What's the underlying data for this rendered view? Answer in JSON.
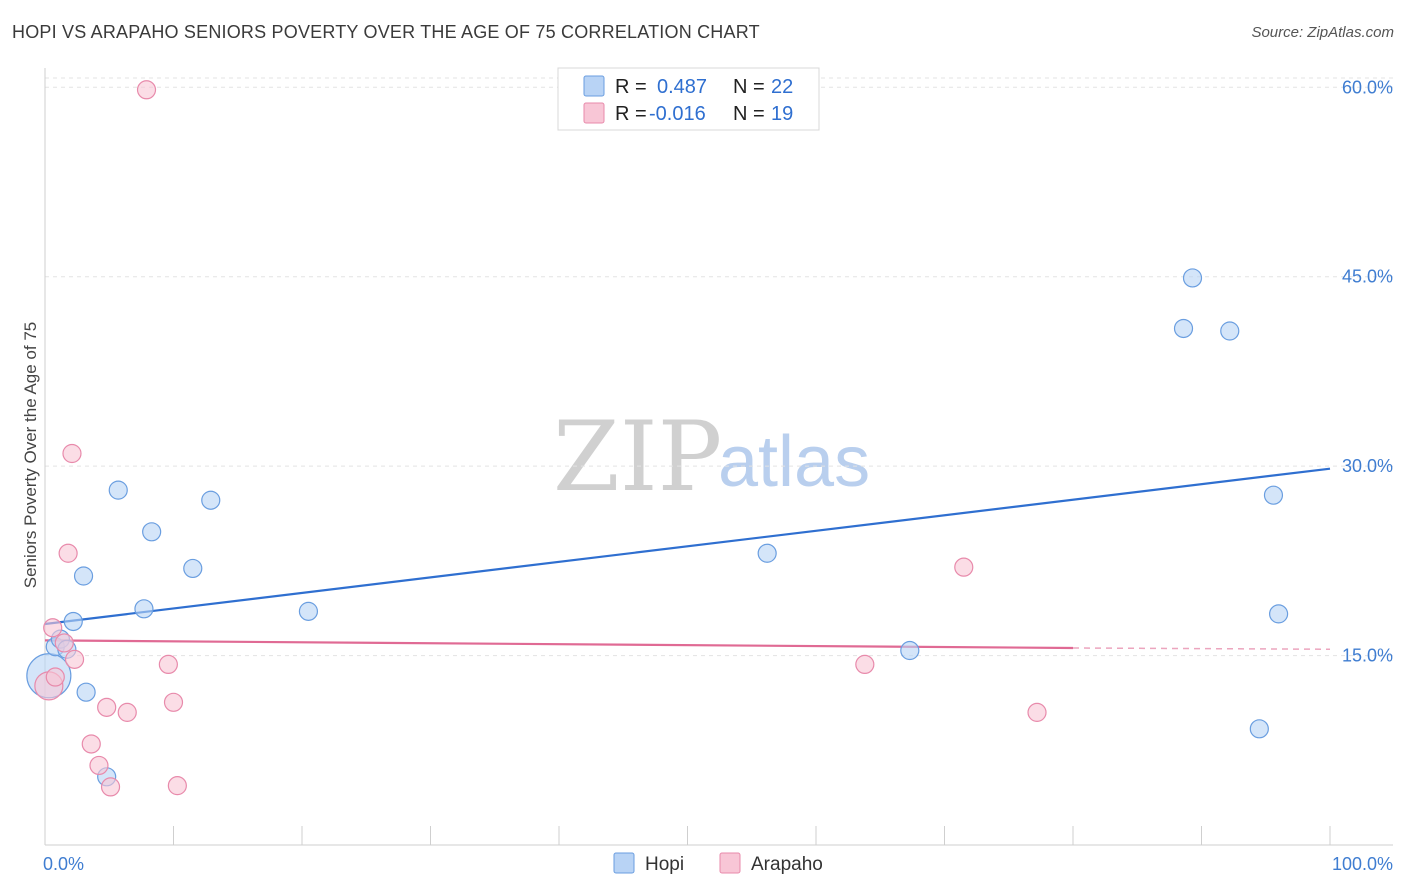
{
  "title": "HOPI VS ARAPAHO SENIORS POVERTY OVER THE AGE OF 75 CORRELATION CHART",
  "source": "Source: ZipAtlas.com",
  "watermark": {
    "zip": "ZIP",
    "atlas": "atlas"
  },
  "colors": {
    "hopi_fill": "#b8d3f5",
    "hopi_stroke": "#6a9ee0",
    "hopi_line": "#2f6fd0",
    "arapaho_fill": "#f8c6d6",
    "arapaho_stroke": "#e88aab",
    "arapaho_line": "#e06a94",
    "grid": "#e3e3e3",
    "axis_label": "#3f7dd1"
  },
  "legend": {
    "rows": [
      {
        "r_label": "R =",
        "r_value": "0.487",
        "n_label": "N =",
        "n_value": "22"
      },
      {
        "r_label": "R =",
        "r_value": "-0.016",
        "n_label": "N =",
        "n_value": "19"
      }
    ]
  },
  "chart_data": {
    "type": "scatter",
    "title": "HOPI VS ARAPAHO SENIORS POVERTY OVER THE AGE OF 75 CORRELATION CHART",
    "xlabel": "",
    "ylabel": "Seniors Poverty Over the Age of 75",
    "xlim": [
      0,
      100
    ],
    "ylim": [
      0,
      62
    ],
    "x_tick_labels": [
      "0.0%",
      "100.0%"
    ],
    "y_ticks": [
      15,
      30,
      45,
      60
    ],
    "y_tick_labels": [
      "15.0%",
      "30.0%",
      "45.0%",
      "60.0%"
    ],
    "series": [
      {
        "name": "Hopi",
        "points": [
          {
            "x": 0.3,
            "y": 13.4,
            "size": 22
          },
          {
            "x": 0.8,
            "y": 15.7,
            "size": 9
          },
          {
            "x": 1.2,
            "y": 16.3,
            "size": 9
          },
          {
            "x": 1.7,
            "y": 15.5,
            "size": 9
          },
          {
            "x": 2.2,
            "y": 17.7,
            "size": 9
          },
          {
            "x": 3.0,
            "y": 21.3,
            "size": 9
          },
          {
            "x": 3.2,
            "y": 12.1,
            "size": 9
          },
          {
            "x": 4.8,
            "y": 5.4,
            "size": 9
          },
          {
            "x": 5.7,
            "y": 28.1,
            "size": 9
          },
          {
            "x": 7.7,
            "y": 18.7,
            "size": 9
          },
          {
            "x": 8.3,
            "y": 24.8,
            "size": 9
          },
          {
            "x": 11.5,
            "y": 21.9,
            "size": 9
          },
          {
            "x": 12.9,
            "y": 27.3,
            "size": 9
          },
          {
            "x": 20.5,
            "y": 18.5,
            "size": 9
          },
          {
            "x": 56.2,
            "y": 23.1,
            "size": 9
          },
          {
            "x": 67.3,
            "y": 15.4,
            "size": 9
          },
          {
            "x": 88.6,
            "y": 40.9,
            "size": 9
          },
          {
            "x": 89.3,
            "y": 44.9,
            "size": 9
          },
          {
            "x": 92.2,
            "y": 40.7,
            "size": 9
          },
          {
            "x": 94.5,
            "y": 9.2,
            "size": 9
          },
          {
            "x": 95.6,
            "y": 27.7,
            "size": 9
          },
          {
            "x": 96.0,
            "y": 18.3,
            "size": 9
          }
        ],
        "trend": {
          "x0": 0,
          "y0": 17.5,
          "x1": 100,
          "y1": 29.8
        }
      },
      {
        "name": "Arapaho",
        "points": [
          {
            "x": 0.3,
            "y": 12.6,
            "size": 14
          },
          {
            "x": 0.6,
            "y": 17.2,
            "size": 9
          },
          {
            "x": 0.8,
            "y": 13.3,
            "size": 9
          },
          {
            "x": 1.5,
            "y": 16.0,
            "size": 9
          },
          {
            "x": 1.8,
            "y": 23.1,
            "size": 9
          },
          {
            "x": 2.1,
            "y": 31.0,
            "size": 9
          },
          {
            "x": 2.3,
            "y": 14.7,
            "size": 9
          },
          {
            "x": 3.6,
            "y": 8.0,
            "size": 9
          },
          {
            "x": 4.2,
            "y": 6.3,
            "size": 9
          },
          {
            "x": 4.8,
            "y": 10.9,
            "size": 9
          },
          {
            "x": 5.1,
            "y": 4.6,
            "size": 9
          },
          {
            "x": 6.4,
            "y": 10.5,
            "size": 9
          },
          {
            "x": 7.9,
            "y": 59.8,
            "size": 9
          },
          {
            "x": 9.6,
            "y": 14.3,
            "size": 9
          },
          {
            "x": 10.0,
            "y": 11.3,
            "size": 9
          },
          {
            "x": 10.3,
            "y": 4.7,
            "size": 9
          },
          {
            "x": 63.8,
            "y": 14.3,
            "size": 9
          },
          {
            "x": 71.5,
            "y": 22.0,
            "size": 9
          },
          {
            "x": 77.2,
            "y": 10.5,
            "size": 9
          }
        ],
        "trend": {
          "x0": 0,
          "y0": 16.2,
          "x1": 80,
          "y1": 15.6,
          "dashed_to": 100,
          "dashed_y": 15.5
        }
      }
    ]
  }
}
